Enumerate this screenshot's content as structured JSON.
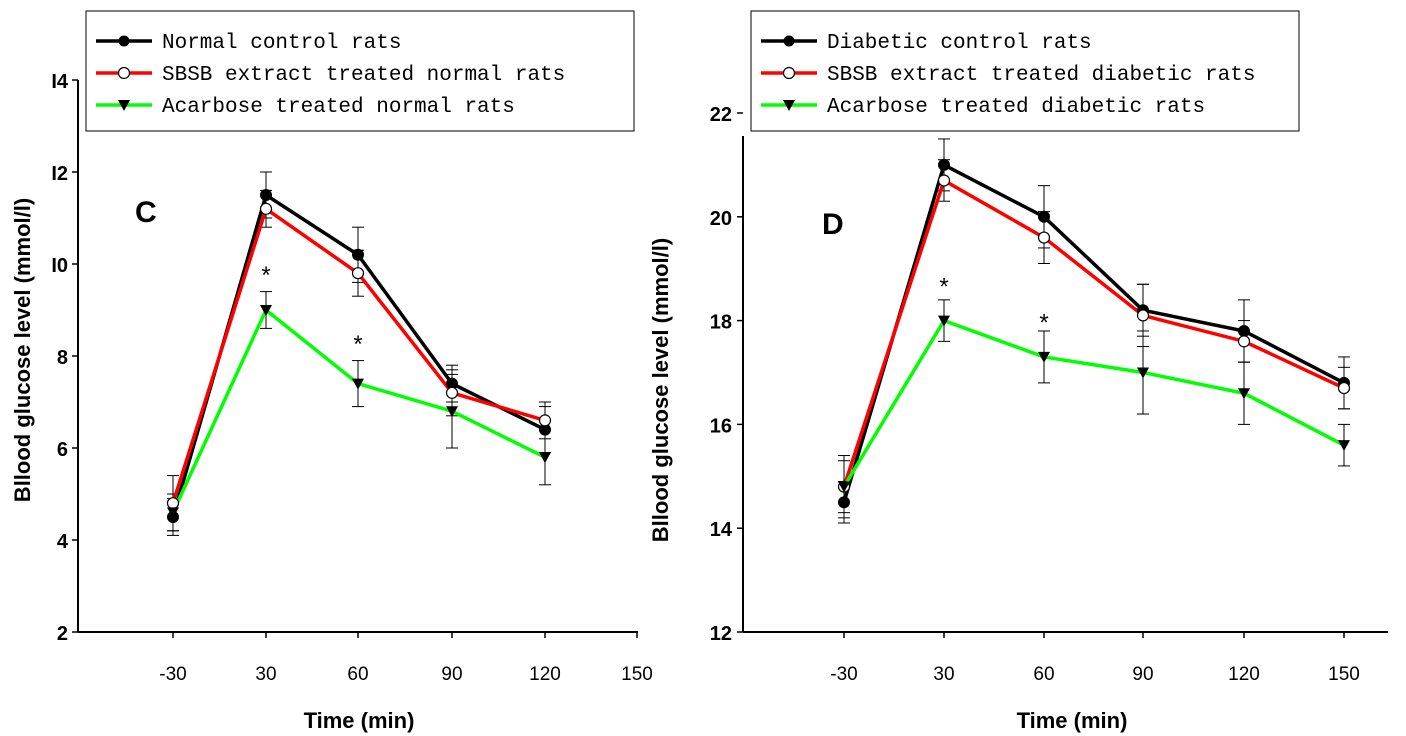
{
  "chart_data": [
    {
      "type": "line",
      "panel_label": "C",
      "xlabel": "Time (min)",
      "ylabel": "Bllood glucose level (mmol/l)",
      "x": [
        -30,
        30,
        60,
        90,
        120
      ],
      "xticks": [
        "-30",
        "30",
        "60",
        "90",
        "120",
        "150"
      ],
      "yticks": [
        "2",
        "4",
        "6",
        "8",
        "I0",
        "I2",
        "I4"
      ],
      "ylim": [
        2,
        14
      ],
      "legend_position": "top-left",
      "grid": false,
      "series": [
        {
          "name": "Normal control rats",
          "color": "#000000",
          "marker": "filled-circle",
          "values": [
            4.5,
            11.5,
            10.2,
            7.4,
            6.4
          ],
          "errors": [
            0.4,
            0.5,
            0.6,
            0.4,
            0.5
          ]
        },
        {
          "name": "SBSB extract treated normal rats",
          "color": "#ff0000",
          "marker": "open-circle",
          "values": [
            4.8,
            11.2,
            9.8,
            7.2,
            6.6
          ],
          "errors": [
            0.6,
            0.4,
            0.5,
            0.5,
            0.4
          ]
        },
        {
          "name": "Acarbose treated normal rats",
          "color": "#00ff00",
          "marker": "filled-triangle",
          "values": [
            4.6,
            9.0,
            7.4,
            6.8,
            5.8
          ],
          "errors": [
            0.4,
            0.4,
            0.5,
            0.8,
            0.6
          ]
        }
      ],
      "annotations": [
        {
          "x": 30,
          "y": 9.8,
          "text": "*"
        },
        {
          "x": 60,
          "y": 8.3,
          "text": "*"
        }
      ]
    },
    {
      "type": "line",
      "panel_label": "D",
      "xlabel": "Time (min)",
      "ylabel": "Bllood glucose level (mmol/l)",
      "x": [
        -30,
        30,
        60,
        90,
        120,
        150
      ],
      "xticks": [
        "-30",
        "30",
        "60",
        "90",
        "120",
        "150"
      ],
      "yticks": [
        "12",
        "14",
        "16",
        "18",
        "20",
        "22"
      ],
      "ylim": [
        12,
        22
      ],
      "legend_position": "top-left",
      "grid": false,
      "series": [
        {
          "name": "Diabetic control rats",
          "color": "#000000",
          "marker": "filled-circle",
          "values": [
            14.5,
            21.0,
            20.0,
            18.2,
            17.8,
            16.8
          ],
          "errors": [
            0.4,
            0.5,
            0.6,
            0.5,
            0.6,
            0.5
          ]
        },
        {
          "name": "SBSB extract treated diabetic rats",
          "color": "#ff0000",
          "marker": "open-circle",
          "values": [
            14.8,
            20.7,
            19.6,
            18.1,
            17.6,
            16.7
          ],
          "errors": [
            0.6,
            0.4,
            0.5,
            0.6,
            0.4,
            0.4
          ]
        },
        {
          "name": "Acarbose treated diabetic rats",
          "color": "#00ff00",
          "marker": "filled-triangle",
          "values": [
            14.8,
            18.0,
            17.3,
            17.0,
            16.6,
            15.6
          ],
          "errors": [
            0.5,
            0.4,
            0.5,
            0.8,
            0.6,
            0.4
          ]
        }
      ],
      "annotations": [
        {
          "x": 30,
          "y": 18.7,
          "text": "*"
        },
        {
          "x": 60,
          "y": 18.0,
          "text": "*"
        }
      ]
    }
  ]
}
